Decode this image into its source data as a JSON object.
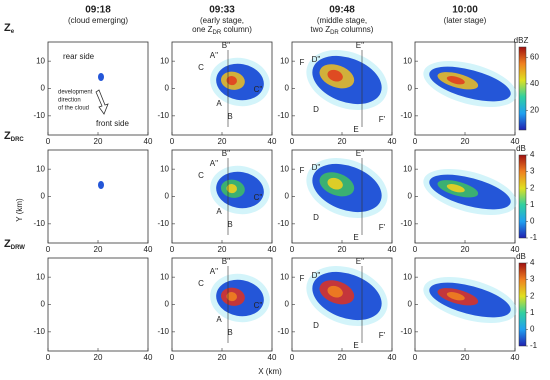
{
  "columns": [
    {
      "time": "09:18",
      "caption": [
        {
          "pre": "(cloud emerging)"
        }
      ]
    },
    {
      "time": "09:33",
      "caption": [
        {
          "pre": "(early stage,"
        },
        {
          "pre": "one Z",
          "sub": "DR",
          "post": " column)"
        }
      ],
      "labels": [
        "B''",
        "A''",
        "C",
        "C''",
        "A",
        "B"
      ]
    },
    {
      "time": "09:48",
      "caption": [
        {
          "pre": "(middle stage,"
        },
        {
          "pre": "two Z",
          "sub": "DR",
          "post": " columns)"
        }
      ],
      "labels": [
        "F",
        "D''",
        "E''",
        "F'",
        "D",
        "E"
      ]
    },
    {
      "time": "10:00",
      "caption": [
        {
          "pre": "(later stage)"
        }
      ]
    }
  ],
  "rows": [
    {
      "label": "Z",
      "sub": "e",
      "unit": "dBZ",
      "range": [
        5,
        68
      ],
      "ticks": [
        60,
        40,
        20
      ]
    },
    {
      "label": "Z",
      "sub": "DRC",
      "unit": "dB",
      "range": [
        -1,
        4
      ],
      "ticks": [
        4,
        3,
        2,
        1,
        0,
        -1
      ]
    },
    {
      "label": "Z",
      "sub": "DRW",
      "unit": "dB",
      "range": [
        -1,
        4
      ],
      "ticks": [
        4,
        3,
        2,
        1,
        0,
        -1
      ]
    }
  ],
  "axes": {
    "x_label": "X (km)",
    "y_label": "Y (km)",
    "xlim": [
      0,
      40
    ],
    "ylim": [
      -17,
      17
    ],
    "x_ticks": [
      0,
      20,
      40
    ],
    "y_ticks": [
      10,
      0,
      -10
    ]
  },
  "annotations": {
    "rear": "rear side",
    "direction": [
      "development",
      "direction",
      "of the cloud"
    ],
    "front": "front side"
  }
}
